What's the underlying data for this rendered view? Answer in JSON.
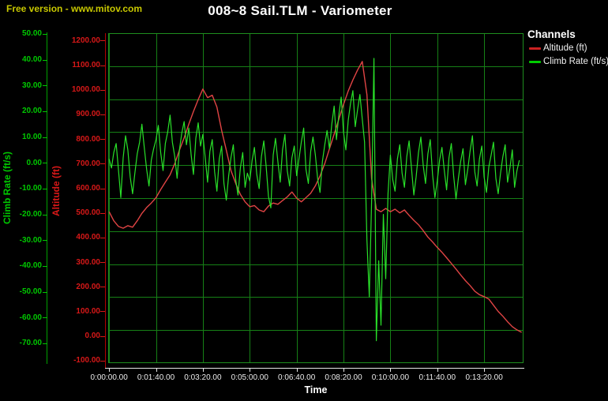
{
  "watermark": "Free version - www.mitov.com",
  "title": "008~8 Sail.TLM - Variometer",
  "legend": {
    "title": "Channels",
    "items": [
      {
        "label": "Altitude (ft)",
        "color": "#cc2222"
      },
      {
        "label": "Climb Rate (ft/s)",
        "color": "#00cc00"
      }
    ]
  },
  "chart_data": {
    "type": "line",
    "title": "008~8 Sail.TLM - Variometer",
    "background": "#000000",
    "grid": {
      "h_divisions": 10,
      "color": "#168016",
      "border_color": "#1e8e1e"
    },
    "x_axis": {
      "label": "Time",
      "min_s": -2,
      "max_s": 884,
      "tick_seconds": [
        0,
        100,
        200,
        300,
        400,
        500,
        600,
        700,
        800
      ],
      "tick_labels": [
        "0:00:00.00",
        "0:01:40.00",
        "0:03:20.00",
        "0:05:00.00",
        "0:06:40.00",
        "0:08:20.00",
        "0:10:00.00",
        "0:11:40.00",
        "0:13:20.00"
      ],
      "color": "#ececec"
    },
    "y_axes": [
      {
        "id": "climb",
        "label": "Climb Rate (ft/s)",
        "label_color": "#00c800",
        "top_value": 50.3,
        "bottom_value": -77.7,
        "tick_labels": [
          "50.00",
          "40.00",
          "30.00",
          "20.00",
          "10.00",
          "0.00",
          "-10.00",
          "-20.00",
          "-30.00",
          "-40.00",
          "-50.00",
          "-60.00",
          "-70.00"
        ]
      },
      {
        "id": "alt",
        "label": "Altitude (ft)",
        "label_color": "#d81818",
        "top_value": 1230,
        "bottom_value": -110,
        "tick_labels": [
          "1200.00",
          "1100.00",
          "1000.00",
          "900.00",
          "800.00",
          "700.00",
          "600.00",
          "500.00",
          "400.00",
          "300.00",
          "200.00",
          "100.00",
          "0.00",
          "-100.00"
        ]
      }
    ],
    "series": [
      {
        "name": "Altitude (ft)",
        "y_axis": "alt",
        "color": "#e04444",
        "width": 1.4,
        "t0": 0,
        "dt_s": 10,
        "values": [
          505,
          468,
          445,
          438,
          448,
          442,
          468,
          498,
          522,
          540,
          562,
          595,
          625,
          655,
          700,
          755,
          805,
          860,
          912,
          960,
          1003,
          968,
          978,
          930,
          835,
          755,
          672,
          620,
          575,
          545,
          525,
          530,
          512,
          505,
          528,
          540,
          535,
          550,
          565,
          585,
          560,
          545,
          562,
          580,
          610,
          650,
          700,
          760,
          820,
          880,
          940,
          995,
          1040,
          1080,
          1115,
          980,
          640,
          515,
          505,
          518,
          505,
          515,
          500,
          512,
          490,
          470,
          452,
          428,
          402,
          382,
          360,
          340,
          318,
          295,
          272,
          248,
          225,
          205,
          182,
          168,
          160,
          150,
          125,
          100,
          80,
          58,
          38,
          25,
          15
        ]
      },
      {
        "name": "Climb Rate (ft/s)",
        "y_axis": "climb",
        "color": "#29e029",
        "width": 1.2,
        "t0": 0,
        "dt_s": 5,
        "values": [
          1.5,
          -2,
          4,
          7.5,
          -3,
          -13.5,
          2,
          10.5,
          5,
          -5.5,
          -12,
          -4,
          3.5,
          8,
          15,
          6,
          -2.5,
          -9,
          1,
          5.5,
          9,
          14.5,
          4,
          -3,
          7.5,
          12,
          18.5,
          8,
          2.5,
          -6,
          5,
          11.5,
          16,
          7,
          13.5,
          3,
          -4.5,
          9.5,
          15.5,
          6.5,
          11,
          2,
          -7.5,
          4.5,
          9,
          -3.5,
          -11,
          1.5,
          6.5,
          -8,
          -14.5,
          -5,
          2,
          7,
          -6.5,
          -12.5,
          -2,
          4,
          -9.5,
          -4,
          -7,
          1,
          6,
          -4.5,
          -10,
          2.5,
          8.5,
          -1.5,
          -13,
          -17.5,
          3,
          9.5,
          0.5,
          -7.5,
          5,
          11,
          -3,
          -9,
          2,
          6.5,
          -5,
          1.5,
          8,
          13.5,
          -2.5,
          -8,
          4.5,
          10,
          3,
          -6.5,
          -11.5,
          0.5,
          7,
          12.5,
          5.5,
          15,
          22,
          9,
          18.5,
          25.5,
          12,
          5,
          16.5,
          23,
          28,
          14,
          20.5,
          26.5,
          17,
          8,
          -30,
          -52,
          -15,
          40.5,
          -69,
          -38,
          -63,
          -20,
          -45,
          -12,
          3,
          -6.5,
          -11,
          1.5,
          7,
          -4,
          -9.5,
          2.5,
          8.5,
          -2,
          -12.5,
          -5.5,
          4,
          10,
          -1,
          -8,
          3.5,
          9,
          -4.5,
          -13.5,
          -7,
          1,
          6,
          -3,
          -10.5,
          2,
          7.5,
          -5,
          -14,
          -6,
          0.5,
          5.5,
          -8.5,
          -2.5,
          4.5,
          10.5,
          -3.5,
          -9,
          1.5,
          6.5,
          -5.5,
          -11.5,
          -1.5,
          3,
          8,
          -6,
          -12,
          -4,
          2.5,
          7,
          -7.5,
          -2,
          5,
          -9.5,
          -3,
          1
        ]
      }
    ]
  }
}
